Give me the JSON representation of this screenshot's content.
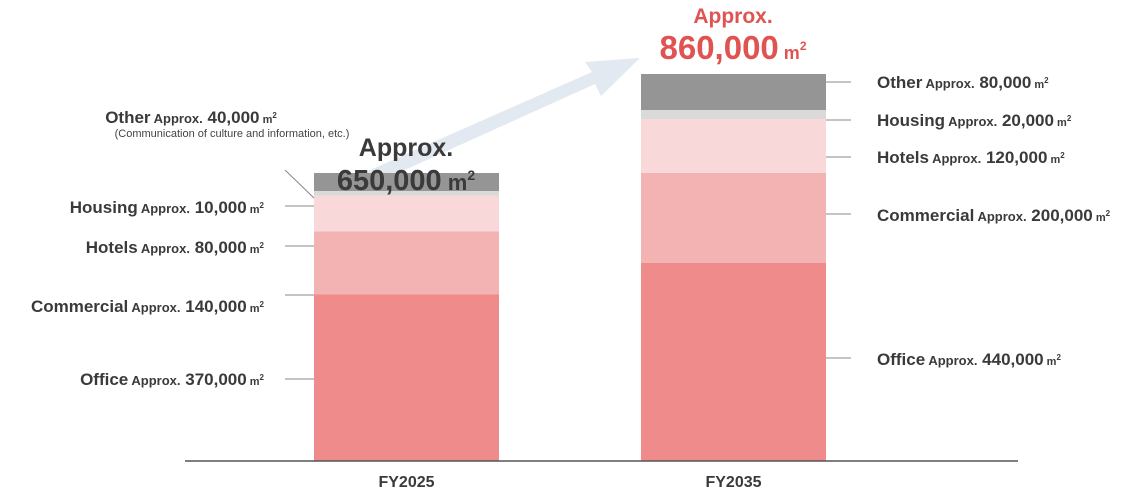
{
  "chart_data": {
    "type": "bar",
    "stacked": true,
    "categories": [
      "FY2025",
      "FY2035"
    ],
    "approx_label": "Approx.",
    "unit": "m",
    "unit_sup": "2",
    "colors": {
      "Office": "#f08b8b",
      "Commercial": "#f3b3b3",
      "Hotels": "#f8d8d8",
      "Housing": "#dadada",
      "Other": "#959595",
      "arrow": "#e3e9f0",
      "highlight": "#e05353"
    },
    "totals": [
      {
        "category": "FY2025",
        "value_text": "650,000",
        "value": 650000
      },
      {
        "category": "FY2035",
        "value_text": "860,000",
        "value": 860000
      }
    ],
    "series": [
      {
        "name": "Office",
        "values": [
          370000,
          440000
        ],
        "value_texts": [
          "370,000",
          "440,000"
        ]
      },
      {
        "name": "Commercial",
        "values": [
          140000,
          200000
        ],
        "value_texts": [
          "140,000",
          "200,000"
        ]
      },
      {
        "name": "Hotels",
        "values": [
          80000,
          120000
        ],
        "value_texts": [
          "80,000",
          "120,000"
        ]
      },
      {
        "name": "Housing",
        "values": [
          10000,
          20000
        ],
        "value_texts": [
          "10,000",
          "20,000"
        ]
      },
      {
        "name": "Other",
        "values": [
          40000,
          80000
        ],
        "value_texts": [
          "40,000",
          "80,000"
        ]
      }
    ],
    "other_note_fy2025": "(Communication of culture and information, etc.)"
  }
}
